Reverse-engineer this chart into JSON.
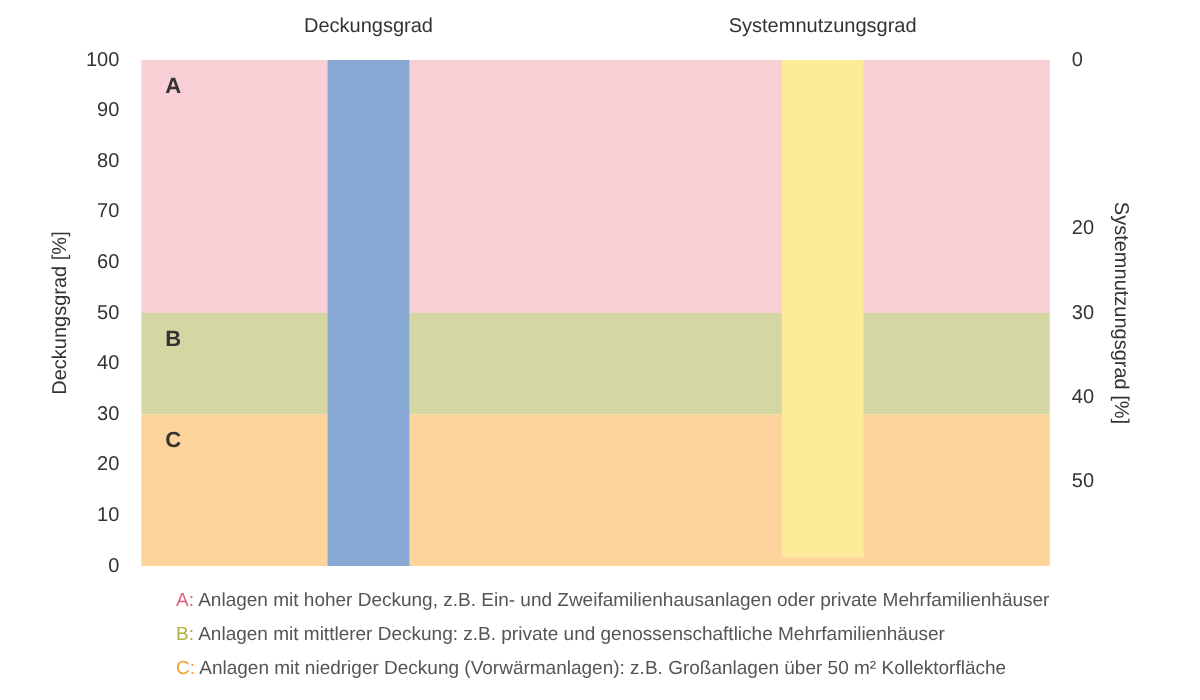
{
  "chart_data": {
    "type": "bar",
    "categories": [
      "Deckungsgrad",
      "Systemnutzungsgrad"
    ],
    "ylabel": "Deckungsgrad [%]",
    "y2label": "Systemnutzungsgrad [%]",
    "ylim": [
      0,
      100
    ],
    "yticks": [
      0,
      10,
      20,
      30,
      40,
      50,
      60,
      70,
      80,
      90,
      100
    ],
    "y2lim": [
      60,
      0
    ],
    "y2ticks": [
      0,
      20,
      30,
      40,
      50
    ],
    "series": [
      {
        "color": "#87a9d3",
        "values": [
          100,
          null
        ]
      },
      {
        "color": "#fdeb9a",
        "values": [
          null,
          59
        ],
        "axis": "y2"
      }
    ],
    "bands": [
      {
        "axis": "y",
        "from": 50,
        "to": 100,
        "label": "A",
        "color": "#f7cfd4"
      },
      {
        "axis": "y",
        "from": 30,
        "to": 50,
        "label": "B",
        "color": "#d4d7a3"
      },
      {
        "axis": "y",
        "from": 0,
        "to": 30,
        "label": "C",
        "color": "#fcd49c"
      }
    ],
    "annotations": [
      "A: Anlagen mit hoher Deckung, z.B. Ein- und Zweifamilienhausanlagen oder private Mehrfamilienhäuser",
      "B: Anlagen mit mittlerer Deckung: z.B. private und genossenschaftliche Mehrfamilienhäuser",
      "C: Anlagen mit niedriger Deckung (Vorwärmanlagen): z.B. Großanlagen über 50 m² Kollektorfläche"
    ],
    "grid": false,
    "legend": false
  }
}
